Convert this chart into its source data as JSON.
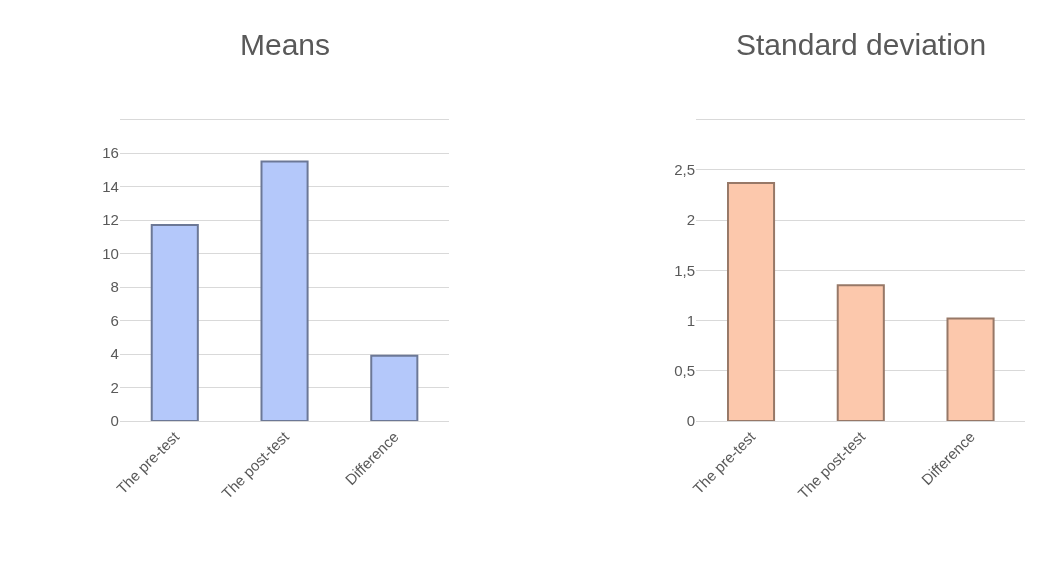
{
  "chart_data": [
    {
      "type": "bar",
      "title": "Means",
      "categories": [
        "The pre-test",
        "The post-test",
        "Difference"
      ],
      "series": [
        {
          "color": "#b4c8fa",
          "values": [
            11.7,
            15.5,
            3.9
          ]
        }
      ],
      "ylim": [
        0,
        18
      ],
      "yticks": [
        0,
        2,
        4,
        6,
        8,
        10,
        12,
        14,
        16,
        {
          "value": 18,
          "label": null
        }
      ],
      "grid": "y"
    },
    {
      "type": "bar",
      "title": "Standard deviation",
      "categories": [
        "The pre-test",
        "The post-test",
        "Difference"
      ],
      "series": [
        {
          "color": "#fcc8ac",
          "values": [
            2.37,
            1.35,
            1.02
          ]
        }
      ],
      "ylim": [
        0,
        3
      ],
      "yticks": [
        0,
        {
          "value": 0.5,
          "label": "0,5"
        },
        1,
        {
          "value": 1.5,
          "label": "1,5"
        },
        2,
        {
          "value": 2.5,
          "label": "2,5"
        },
        {
          "value": 3,
          "label": null
        }
      ],
      "grid": "y"
    }
  ]
}
